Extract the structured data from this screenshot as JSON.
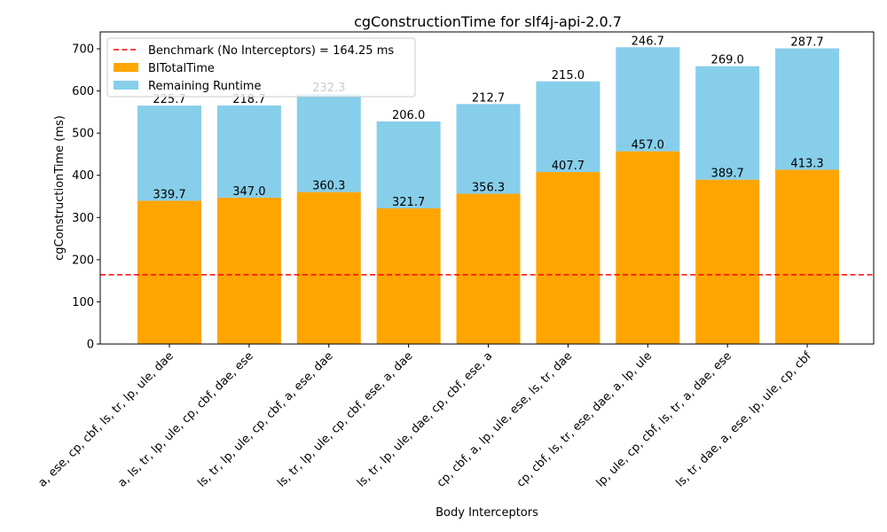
{
  "chart_data": {
    "type": "bar",
    "stacked": true,
    "title": "cgConstructionTime for slf4j-api-2.0.7",
    "xlabel": "Body Interceptors",
    "ylabel": "cgConstructionTime (ms)",
    "ylim": [
      0,
      740
    ],
    "yticks": [
      0,
      100,
      200,
      300,
      400,
      500,
      600,
      700
    ],
    "grid": false,
    "legend_position": "top-left",
    "categories": [
      "a, ese, cp, cbf, ls, tr, lp, ule, dae",
      "a, ls, tr, lp, ule, cp, cbf, dae, ese",
      "ls, tr, lp, ule, cp, cbf, a, ese, dae",
      "ls, tr, lp, ule, cp, cbf, ese, a, dae",
      "ls, tr, lp, ule, dae, cp, cbf, ese, a",
      "cp, cbf, a, lp, ule, ese, ls, tr, dae",
      "cp, cbf, ls, tr, ese, dae, a, lp, ule",
      "lp, ule, cp, cbf, ls, tr, a, dae, ese",
      "ls, tr, dae, a, ese, lp, ule, cp, cbf"
    ],
    "series": [
      {
        "name": "BITotalTime",
        "color": "#ffa500",
        "values": [
          339.7,
          347.0,
          360.3,
          321.7,
          356.3,
          407.7,
          457.0,
          389.7,
          413.3
        ],
        "labels": [
          "339.7",
          "347.0",
          "360.3",
          "321.7",
          "356.3",
          "407.7",
          "457.0",
          "389.7",
          "413.3"
        ]
      },
      {
        "name": "Remaining Runtime",
        "color": "#87ceeb",
        "values": [
          225.7,
          218.7,
          232.3,
          206.0,
          212.7,
          215.0,
          246.7,
          269.0,
          287.7
        ],
        "labels": [
          "225.7",
          "218.7",
          "232.3",
          "206.0",
          "212.7",
          "215.0",
          "246.7",
          "269.0",
          "287.7"
        ]
      }
    ],
    "reference_line": {
      "label": "Benchmark (No Interceptors) = 164.25 ms",
      "value": 164.25,
      "color": "#ff0000"
    }
  }
}
